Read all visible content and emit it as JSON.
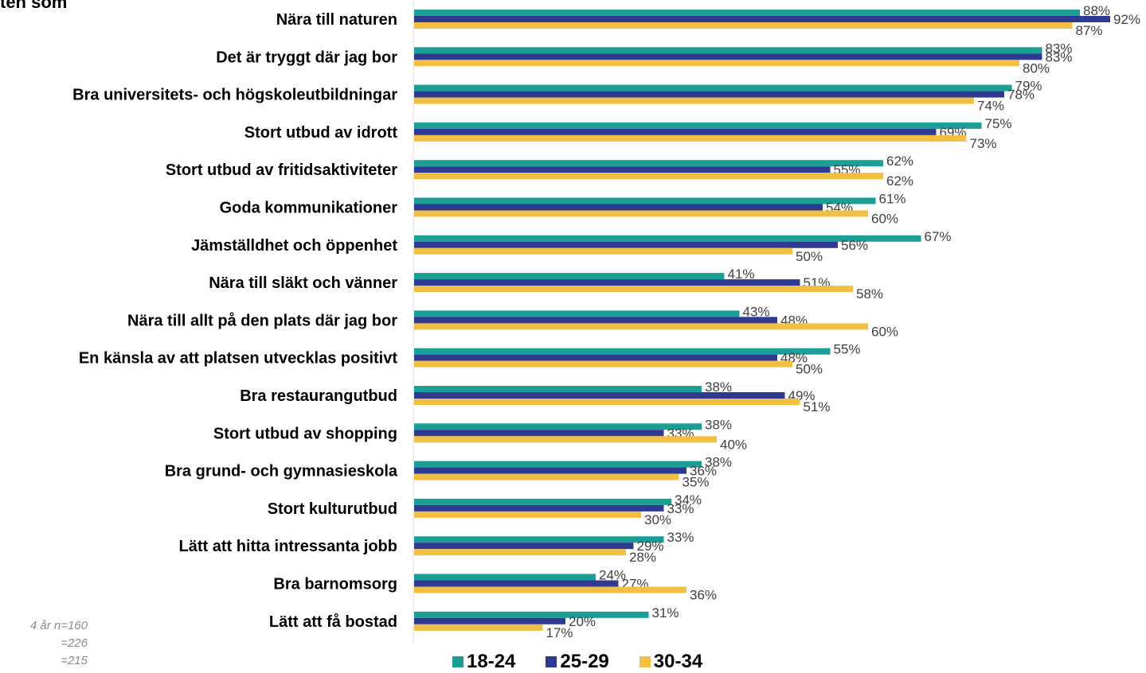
{
  "title_fragment": "ten som",
  "notes": [
    "4 år n=160",
    "=226",
    "=215"
  ],
  "colors": {
    "18-24": "#1a9e96",
    "25-29": "#2e3a92",
    "30-34": "#f2bf45",
    "axis": "#d9d9d9"
  },
  "chart_data": {
    "type": "bar",
    "orientation": "horizontal",
    "grid": false,
    "legend_position": "bottom",
    "xlim": [
      0,
      100
    ],
    "categories": [
      "Nära till naturen",
      "Det är tryggt där jag bor",
      "Bra universitets- och högskoleutbildningar",
      "Stort utbud av idrott",
      "Stort utbud av fritidsaktiviteter",
      "Goda kommunikationer",
      "Jämställdhet och öppenhet",
      "Nära till släkt och vänner",
      "Nära till allt på den plats där jag bor",
      "En känsla av att platsen utvecklas positivt",
      "Bra restaurangutbud",
      "Stort utbud av shopping",
      "Bra grund- och gymnasieskola",
      "Stort kulturutbud",
      "Lätt att hitta intressanta jobb",
      "Bra barnomsorg",
      "Lätt att få bostad"
    ],
    "series": [
      {
        "name": "18-24",
        "values": [
          88,
          83,
          79,
          75,
          62,
          61,
          67,
          41,
          43,
          55,
          38,
          38,
          38,
          34,
          33,
          24,
          31
        ],
        "labels": [
          "88%",
          "83%",
          "79%",
          "75%",
          "62%",
          "61%",
          "67%",
          "41%",
          "43%",
          "55%",
          "38%",
          "38%",
          "38%",
          "34%",
          "33%",
          "24%",
          "31%"
        ]
      },
      {
        "name": "25-29",
        "values": [
          92,
          83,
          78,
          69,
          55,
          54,
          56,
          51,
          48,
          48,
          49,
          33,
          36,
          33,
          29,
          27,
          20
        ],
        "labels": [
          "92%",
          "83%",
          "78%",
          "69%",
          "55%",
          "54%",
          "56%",
          "51%",
          "48%",
          "48%",
          "49%",
          "33%",
          "36%",
          "33%",
          "29%",
          "27%",
          "20%"
        ]
      },
      {
        "name": "30-34",
        "values": [
          87,
          80,
          74,
          73,
          62,
          60,
          50,
          58,
          60,
          50,
          51,
          40,
          35,
          30,
          28,
          36,
          17
        ],
        "labels": [
          "87%",
          "80%",
          "74%",
          "73%",
          "62%",
          "60%",
          "50%",
          "58%",
          "60%",
          "50%",
          "51%",
          "40%",
          "35%",
          "30%",
          "28%",
          "36%",
          "17%"
        ]
      }
    ]
  }
}
